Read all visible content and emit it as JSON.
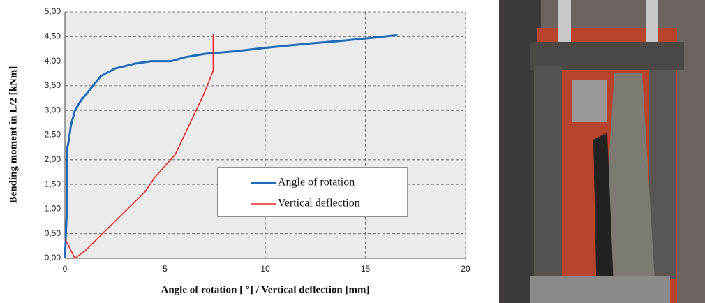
{
  "chart_data": {
    "type": "line",
    "xlabel": "Angle of rotation [ °] / Vertical deflection [mm]",
    "ylabel": "Bending moment in L/2 [kNm]",
    "xlim": [
      0,
      20
    ],
    "xticks": [
      0,
      5,
      10,
      15,
      20
    ],
    "ylim": [
      0,
      5
    ],
    "yticks": [
      {
        "value": 0,
        "label": "0,00"
      },
      {
        "value": 0.5,
        "label": "0,50"
      },
      {
        "value": 1,
        "label": "1,00"
      },
      {
        "value": 1.5,
        "label": "1,50"
      },
      {
        "value": 2,
        "label": "2,00"
      },
      {
        "value": 2.5,
        "label": "2,50"
      },
      {
        "value": 3,
        "label": "3,00"
      },
      {
        "value": 3.5,
        "label": "3,50"
      },
      {
        "value": 4,
        "label": "4,00"
      },
      {
        "value": 4.5,
        "label": "4,50"
      },
      {
        "value": 5,
        "label": "5,00"
      }
    ],
    "grid": true,
    "series": [
      {
        "name": "Angle of rotation",
        "color": "#1f6bb8",
        "x": [
          0,
          0.1,
          0.1,
          0.2,
          0.3,
          0.5,
          0.8,
          1.2,
          1.8,
          2.5,
          3.5,
          4.3,
          5.3,
          6,
          7,
          8.5,
          10,
          12,
          14,
          15.5,
          16.6
        ],
        "values": [
          0,
          1.0,
          2.2,
          2.4,
          2.7,
          3.0,
          3.2,
          3.4,
          3.7,
          3.85,
          3.95,
          4.0,
          4.0,
          4.08,
          4.15,
          4.2,
          4.27,
          4.35,
          4.42,
          4.48,
          4.53
        ]
      },
      {
        "name": "Vertical deflection",
        "color": "#e8262a",
        "x": [
          0,
          0.5,
          1,
          2,
          3,
          4,
          4.5,
          5.5,
          6.2,
          6.9,
          7.4,
          7.4
        ],
        "values": [
          0.4,
          0,
          0.15,
          0.55,
          0.95,
          1.35,
          1.65,
          2.1,
          2.7,
          3.3,
          3.8,
          4.55
        ]
      }
    ]
  }
}
